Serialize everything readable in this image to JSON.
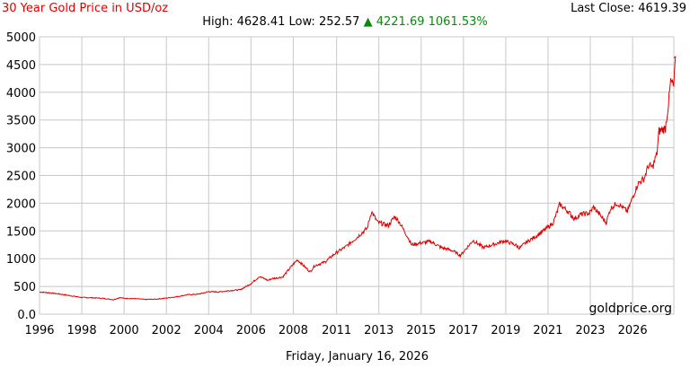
{
  "header": {
    "title": "30 Year Gold Price in USD/oz",
    "last_close_label": "Last Close:",
    "last_close_value": "4619.39",
    "high_label": "High:",
    "high_value": "4628.41",
    "low_label": "Low:",
    "low_value": "252.57",
    "change_arrow": "▲",
    "change_value": "4221.69",
    "change_percent": "1061.53%"
  },
  "footer": {
    "date": "Friday, January 16, 2026"
  },
  "watermark": "goldprice.org",
  "colors": {
    "line": "#e00000",
    "grid": "#c8c8c8",
    "up": "#0a8a0a"
  },
  "chart_data": {
    "type": "line",
    "title": "30 Year Gold Price in USD/oz",
    "xlabel": "",
    "ylabel": "",
    "xlim": [
      1996,
      2026
    ],
    "ylim": [
      0,
      5000
    ],
    "grid": true,
    "x_ticks": [
      "1996",
      "1998",
      "2000",
      "2002",
      "2004",
      "2006",
      "2008",
      "2011",
      "2013",
      "2015",
      "2017",
      "2019",
      "2021",
      "2023",
      "2026"
    ],
    "x_tick_positions": [
      1996,
      1998,
      2000,
      2002,
      2004,
      2006,
      2008,
      2010.05,
      2012.05,
      2014.05,
      2016.05,
      2018.05,
      2020.05,
      2022.05,
      2024.05
    ],
    "y_ticks": [
      "0.0",
      "500",
      "1000",
      "1500",
      "2000",
      "2500",
      "3000",
      "3500",
      "4000",
      "4500",
      "5000"
    ],
    "y_tick_values": [
      0,
      500,
      1000,
      1500,
      2000,
      2500,
      3000,
      3500,
      4000,
      4500,
      5000
    ],
    "series": [
      {
        "values": [
          [
            1996.0,
            400
          ],
          [
            1996.5,
            385
          ],
          [
            1997.0,
            360
          ],
          [
            1997.5,
            330
          ],
          [
            1998.0,
            300
          ],
          [
            1998.5,
            295
          ],
          [
            1999.0,
            285
          ],
          [
            1999.5,
            260
          ],
          [
            1999.8,
            300
          ],
          [
            2000.0,
            285
          ],
          [
            2000.5,
            280
          ],
          [
            2001.0,
            265
          ],
          [
            2001.5,
            270
          ],
          [
            2002.0,
            290
          ],
          [
            2002.5,
            315
          ],
          [
            2003.0,
            350
          ],
          [
            2003.5,
            360
          ],
          [
            2004.0,
            405
          ],
          [
            2004.5,
            400
          ],
          [
            2005.0,
            425
          ],
          [
            2005.5,
            440
          ],
          [
            2006.0,
            550
          ],
          [
            2006.4,
            680
          ],
          [
            2006.8,
            610
          ],
          [
            2007.0,
            640
          ],
          [
            2007.5,
            670
          ],
          [
            2008.0,
            900
          ],
          [
            2008.2,
            980
          ],
          [
            2008.8,
            760
          ],
          [
            2009.0,
            870
          ],
          [
            2009.5,
            940
          ],
          [
            2010.0,
            1100
          ],
          [
            2010.5,
            1220
          ],
          [
            2011.0,
            1380
          ],
          [
            2011.5,
            1550
          ],
          [
            2011.7,
            1850
          ],
          [
            2012.0,
            1650
          ],
          [
            2012.5,
            1600
          ],
          [
            2012.8,
            1760
          ],
          [
            2013.0,
            1670
          ],
          [
            2013.4,
            1400
          ],
          [
            2013.6,
            1250
          ],
          [
            2014.0,
            1280
          ],
          [
            2014.5,
            1310
          ],
          [
            2015.0,
            1200
          ],
          [
            2015.5,
            1150
          ],
          [
            2015.9,
            1060
          ],
          [
            2016.0,
            1100
          ],
          [
            2016.5,
            1330
          ],
          [
            2017.0,
            1200
          ],
          [
            2017.5,
            1260
          ],
          [
            2018.0,
            1320
          ],
          [
            2018.5,
            1250
          ],
          [
            2018.7,
            1190
          ],
          [
            2019.0,
            1290
          ],
          [
            2019.5,
            1410
          ],
          [
            2020.0,
            1550
          ],
          [
            2020.3,
            1650
          ],
          [
            2020.6,
            1980
          ],
          [
            2021.0,
            1850
          ],
          [
            2021.3,
            1720
          ],
          [
            2021.6,
            1800
          ],
          [
            2022.0,
            1820
          ],
          [
            2022.2,
            1930
          ],
          [
            2022.8,
            1650
          ],
          [
            2023.0,
            1900
          ],
          [
            2023.3,
            2000
          ],
          [
            2023.5,
            1950
          ],
          [
            2023.8,
            1850
          ],
          [
            2024.0,
            2050
          ],
          [
            2024.3,
            2350
          ],
          [
            2024.6,
            2450
          ],
          [
            2024.8,
            2680
          ],
          [
            2025.0,
            2650
          ],
          [
            2025.2,
            2900
          ],
          [
            2025.3,
            3300
          ],
          [
            2025.6,
            3350
          ],
          [
            2025.75,
            3800
          ],
          [
            2025.85,
            4200
          ],
          [
            2026.0,
            4100
          ],
          [
            2026.05,
            4450
          ],
          [
            2026.1,
            4619
          ]
        ]
      }
    ]
  }
}
